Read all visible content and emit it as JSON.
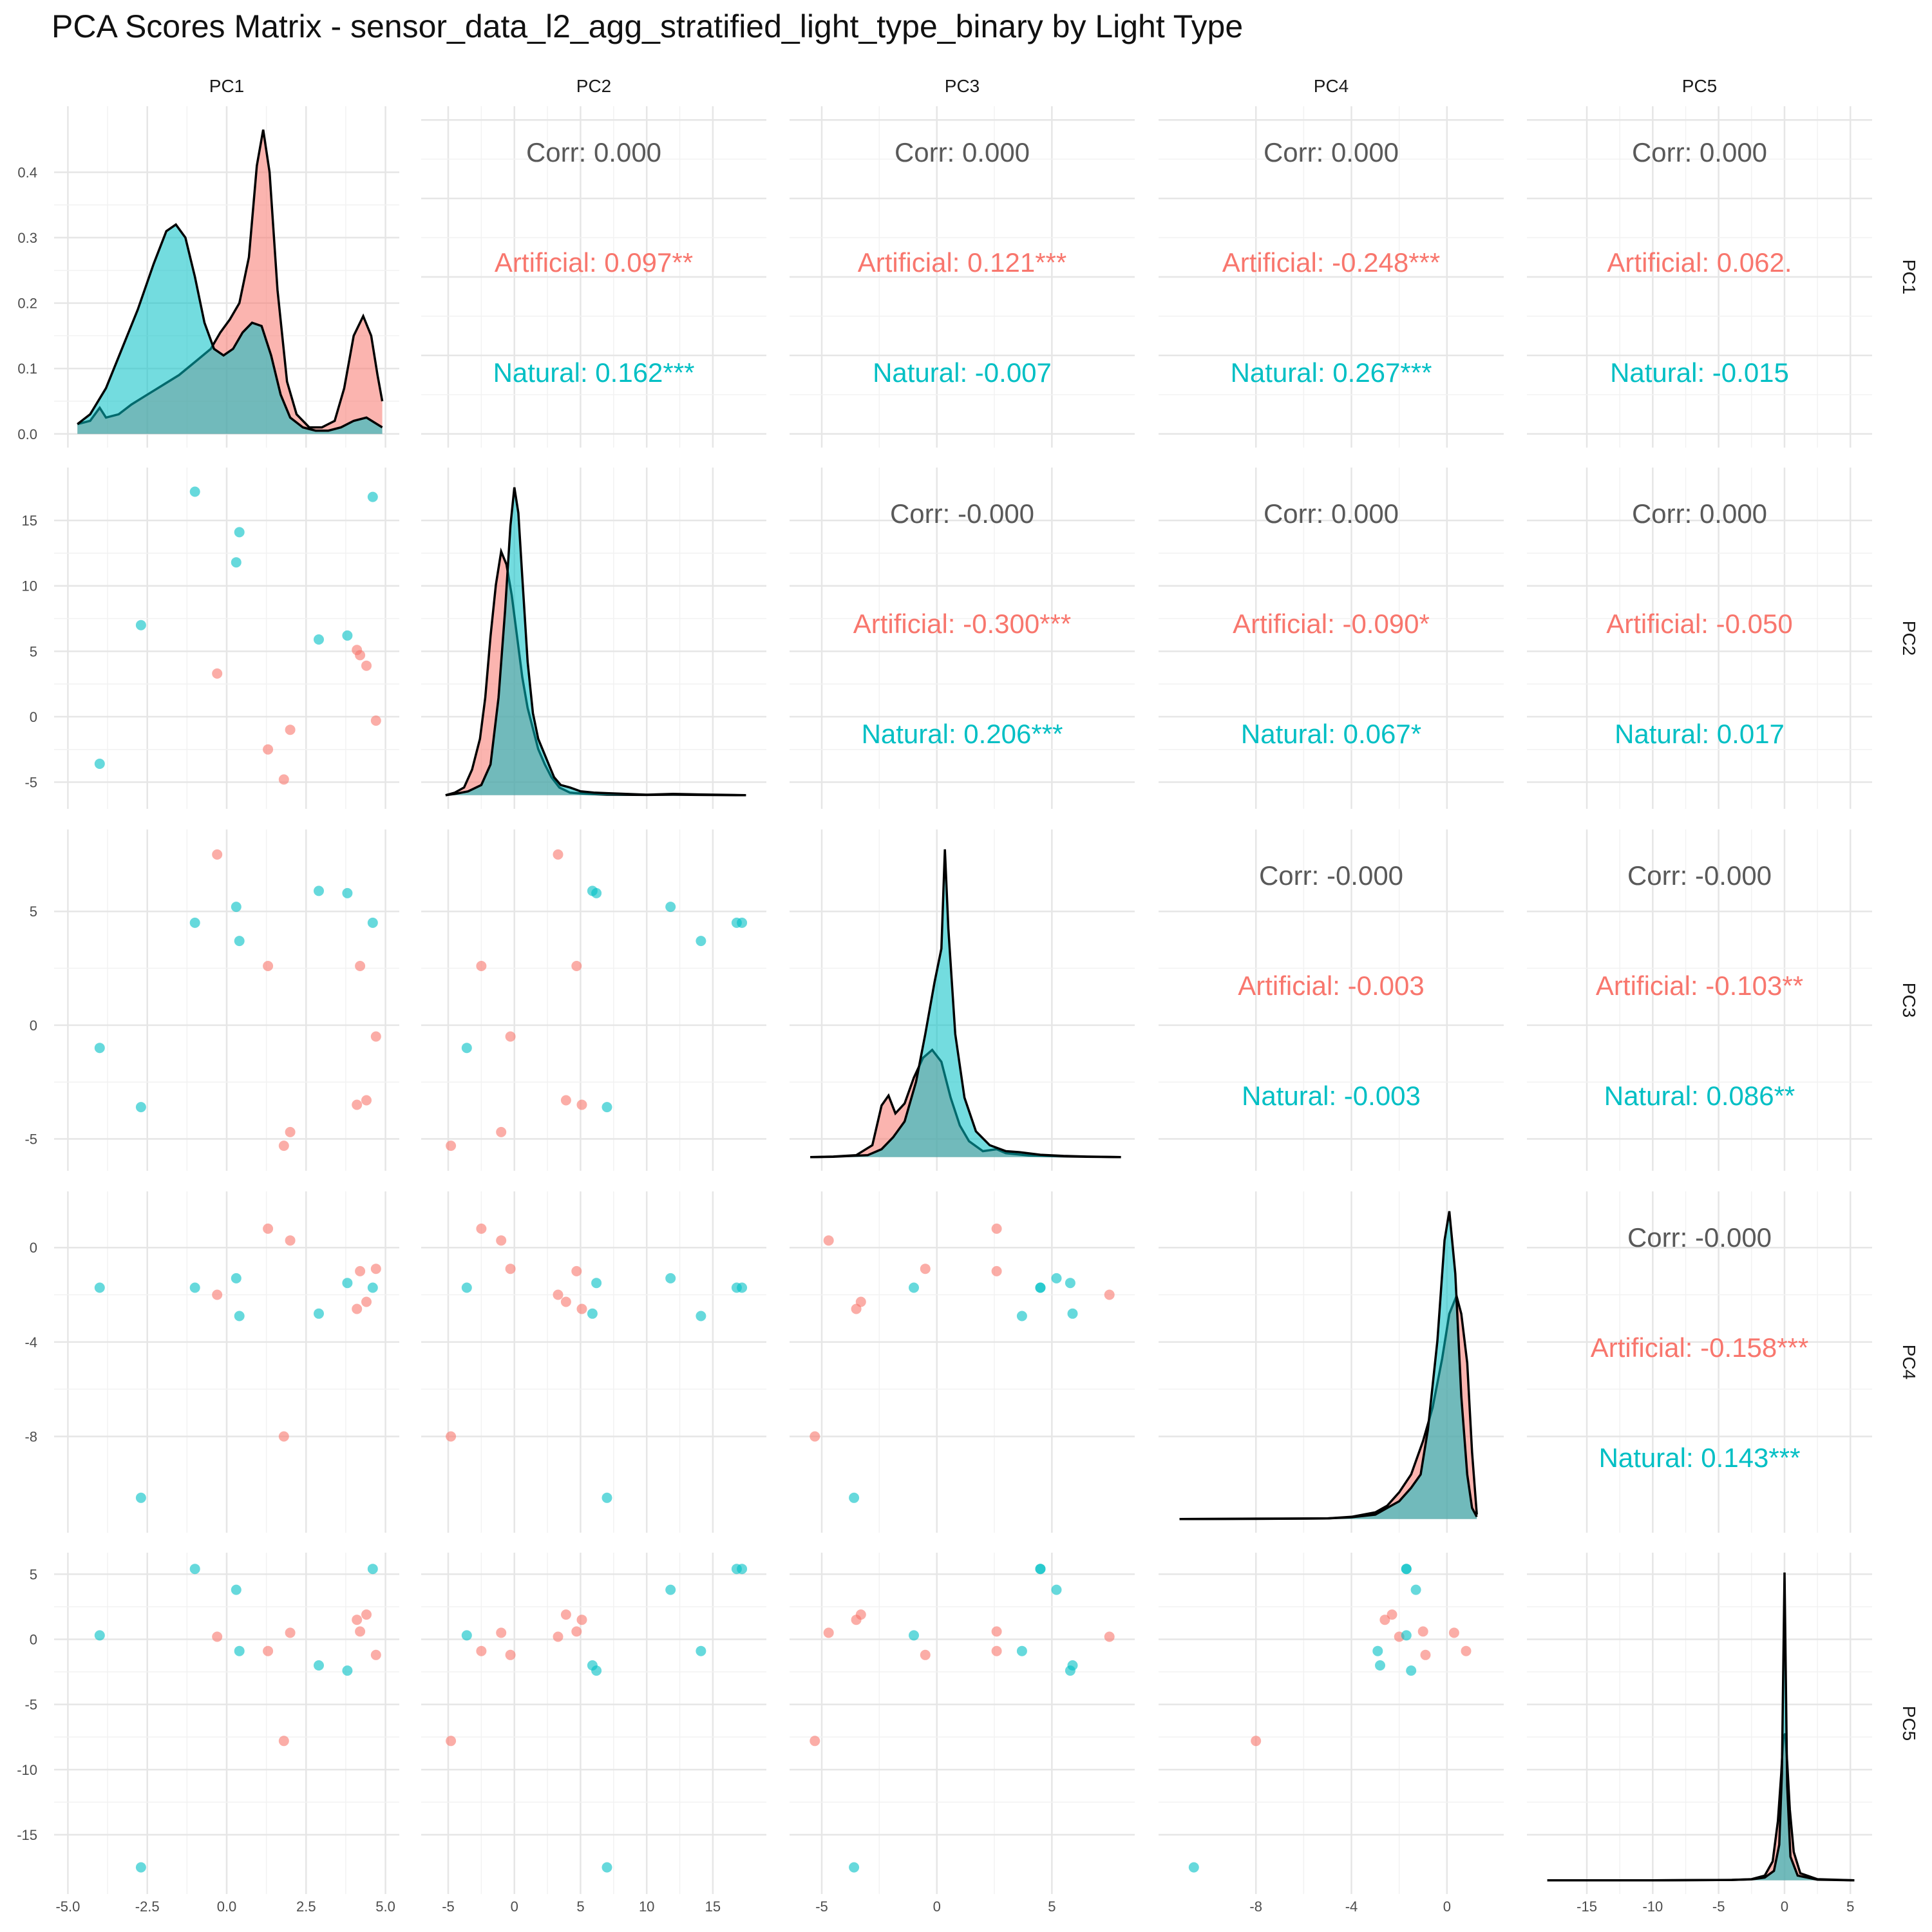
{
  "chart_data": {
    "type": "scatter",
    "title": "PCA Scores Matrix - sensor_data_l2_agg_stratified_light_type_binary by Light Type",
    "variables": [
      "PC1",
      "PC2",
      "PC3",
      "PC4",
      "PC5"
    ],
    "groups": [
      {
        "name": "Artificial",
        "color": "#F8766D"
      },
      {
        "name": "Natural",
        "color": "#00BFC4"
      }
    ],
    "axes": {
      "PC1": {
        "range": [
          -5.0,
          5.0
        ],
        "ticks": [
          "-5.0",
          "-2.5",
          "0.0",
          "2.5",
          "5.0"
        ],
        "tick_values": [
          -5,
          -2.5,
          0,
          2.5,
          5
        ]
      },
      "PC2": {
        "range": [
          -6,
          18
        ],
        "ticks": [
          "-5",
          "0",
          "5",
          "10",
          "15"
        ],
        "tick_values": [
          -5,
          0,
          5,
          10,
          15
        ]
      },
      "PC3": {
        "range": [
          -5.8,
          8.0
        ],
        "ticks": [
          "-5",
          "0",
          "5"
        ],
        "tick_values": [
          -5,
          0,
          5
        ]
      },
      "PC4": {
        "range": [
          -11.5,
          1.8
        ],
        "ticks": [
          "-8",
          "-4",
          "0"
        ],
        "tick_values": [
          -8,
          -4,
          0
        ]
      },
      "PC5": {
        "range": [
          -18.5,
          5.6
        ],
        "ticks": [
          "-15",
          "-10",
          "-5",
          "0",
          "5"
        ],
        "tick_values": [
          -15,
          -10,
          -5,
          0,
          5
        ]
      }
    },
    "density_ylim": [
      0,
      0.48
    ],
    "density_ticks": [
      "0.0",
      "0.1",
      "0.2",
      "0.3",
      "0.4"
    ],
    "density_tick_values": [
      0,
      0.1,
      0.2,
      0.3,
      0.4
    ],
    "correlations": [
      {
        "row": "PC1",
        "col": "PC2",
        "overall": "Corr: 0.000",
        "artificial": "Artificial: 0.097**",
        "natural": "Natural: 0.162***"
      },
      {
        "row": "PC1",
        "col": "PC3",
        "overall": "Corr: 0.000",
        "artificial": "Artificial: 0.121***",
        "natural": "Natural: -0.007"
      },
      {
        "row": "PC1",
        "col": "PC4",
        "overall": "Corr: 0.000",
        "artificial": "Artificial: -0.248***",
        "natural": "Natural: 0.267***"
      },
      {
        "row": "PC1",
        "col": "PC5",
        "overall": "Corr: 0.000",
        "artificial": "Artificial: 0.062.",
        "natural": "Natural: -0.015"
      },
      {
        "row": "PC2",
        "col": "PC3",
        "overall": "Corr: -0.000",
        "artificial": "Artificial: -0.300***",
        "natural": "Natural: 0.206***"
      },
      {
        "row": "PC2",
        "col": "PC4",
        "overall": "Corr: 0.000",
        "artificial": "Artificial: -0.090*",
        "natural": "Natural: 0.067*"
      },
      {
        "row": "PC2",
        "col": "PC5",
        "overall": "Corr: 0.000",
        "artificial": "Artificial: -0.050",
        "natural": "Natural: 0.017"
      },
      {
        "row": "PC3",
        "col": "PC4",
        "overall": "Corr: -0.000",
        "artificial": "Artificial: -0.003",
        "natural": "Natural: -0.003"
      },
      {
        "row": "PC3",
        "col": "PC5",
        "overall": "Corr: -0.000",
        "artificial": "Artificial: -0.103**",
        "natural": "Natural: 0.086**"
      },
      {
        "row": "PC4",
        "col": "PC5",
        "overall": "Corr: -0.000",
        "artificial": "Artificial: -0.158***",
        "natural": "Natural: 0.143***"
      }
    ],
    "densities": {
      "PC1": {
        "Artificial": [
          [
            -4.7,
            0.015
          ],
          [
            -4.3,
            0.02
          ],
          [
            -4.0,
            0.04
          ],
          [
            -3.8,
            0.025
          ],
          [
            -3.4,
            0.03
          ],
          [
            -3.0,
            0.045
          ],
          [
            -2.5,
            0.06
          ],
          [
            -2.0,
            0.075
          ],
          [
            -1.5,
            0.09
          ],
          [
            -1.0,
            0.11
          ],
          [
            -0.5,
            0.13
          ],
          [
            -0.2,
            0.155
          ],
          [
            0.1,
            0.175
          ],
          [
            0.4,
            0.2
          ],
          [
            0.7,
            0.27
          ],
          [
            0.95,
            0.41
          ],
          [
            1.15,
            0.465
          ],
          [
            1.35,
            0.4
          ],
          [
            1.6,
            0.22
          ],
          [
            1.9,
            0.08
          ],
          [
            2.2,
            0.03
          ],
          [
            2.6,
            0.01
          ],
          [
            3.0,
            0.01
          ],
          [
            3.4,
            0.02
          ],
          [
            3.7,
            0.07
          ],
          [
            4.0,
            0.15
          ],
          [
            4.3,
            0.18
          ],
          [
            4.55,
            0.15
          ],
          [
            4.75,
            0.09
          ],
          [
            4.9,
            0.05
          ]
        ],
        "Natural": [
          [
            -4.7,
            0.015
          ],
          [
            -4.3,
            0.03
          ],
          [
            -3.8,
            0.07
          ],
          [
            -3.3,
            0.13
          ],
          [
            -2.8,
            0.19
          ],
          [
            -2.3,
            0.26
          ],
          [
            -1.9,
            0.31
          ],
          [
            -1.6,
            0.32
          ],
          [
            -1.3,
            0.3
          ],
          [
            -1.0,
            0.24
          ],
          [
            -0.7,
            0.17
          ],
          [
            -0.4,
            0.13
          ],
          [
            -0.1,
            0.12
          ],
          [
            0.2,
            0.13
          ],
          [
            0.5,
            0.155
          ],
          [
            0.8,
            0.17
          ],
          [
            1.1,
            0.165
          ],
          [
            1.4,
            0.12
          ],
          [
            1.7,
            0.06
          ],
          [
            2.0,
            0.025
          ],
          [
            2.4,
            0.01
          ],
          [
            2.8,
            0.005
          ],
          [
            3.2,
            0.005
          ],
          [
            3.6,
            0.01
          ],
          [
            4.0,
            0.02
          ],
          [
            4.4,
            0.025
          ],
          [
            4.9,
            0.01
          ]
        ]
      },
      "PC2": {
        "Artificial": [
          [
            -5.2,
            0.0
          ],
          [
            -4.5,
            0.01
          ],
          [
            -3.8,
            0.03
          ],
          [
            -3.2,
            0.1
          ],
          [
            -2.6,
            0.22
          ],
          [
            -2.2,
            0.38
          ],
          [
            -1.8,
            0.62
          ],
          [
            -1.4,
            0.82
          ],
          [
            -1.0,
            0.95
          ],
          [
            -0.6,
            0.9
          ],
          [
            -0.2,
            0.78
          ],
          [
            0.2,
            0.62
          ],
          [
            0.6,
            0.46
          ],
          [
            1.0,
            0.34
          ],
          [
            1.4,
            0.26
          ],
          [
            1.8,
            0.18
          ],
          [
            2.3,
            0.12
          ],
          [
            2.8,
            0.07
          ],
          [
            3.4,
            0.03
          ],
          [
            4.2,
            0.01
          ],
          [
            5.5,
            0.005
          ],
          [
            7.0,
            0.002
          ],
          [
            10,
            0.001
          ],
          [
            12,
            0.002
          ],
          [
            14,
            0.001
          ],
          [
            17.5,
            0.0
          ]
        ],
        "Natural": [
          [
            -5.2,
            0.0
          ],
          [
            -4.5,
            0.005
          ],
          [
            -3.5,
            0.015
          ],
          [
            -2.5,
            0.04
          ],
          [
            -1.8,
            0.12
          ],
          [
            -1.2,
            0.38
          ],
          [
            -0.7,
            0.72
          ],
          [
            -0.3,
            1.05
          ],
          [
            0.0,
            1.2
          ],
          [
            0.3,
            1.1
          ],
          [
            0.6,
            0.85
          ],
          [
            1.0,
            0.52
          ],
          [
            1.4,
            0.32
          ],
          [
            1.8,
            0.22
          ],
          [
            2.2,
            0.17
          ],
          [
            2.6,
            0.12
          ],
          [
            3.0,
            0.07
          ],
          [
            3.5,
            0.04
          ],
          [
            4.2,
            0.03
          ],
          [
            5.0,
            0.015
          ],
          [
            6.0,
            0.01
          ],
          [
            7.0,
            0.008
          ],
          [
            10,
            0.002
          ],
          [
            12,
            0.005
          ],
          [
            14,
            0.003
          ],
          [
            17.5,
            0.0
          ]
        ]
      },
      "PC3": {
        "Artificial": [
          [
            -5.5,
            0.0
          ],
          [
            -4.5,
            0.003
          ],
          [
            -3.5,
            0.01
          ],
          [
            -2.8,
            0.06
          ],
          [
            -2.4,
            0.26
          ],
          [
            -2.1,
            0.31
          ],
          [
            -1.8,
            0.22
          ],
          [
            -1.4,
            0.27
          ],
          [
            -1.0,
            0.4
          ],
          [
            -0.6,
            0.5
          ],
          [
            -0.2,
            0.54
          ],
          [
            0.2,
            0.48
          ],
          [
            0.6,
            0.3
          ],
          [
            1.0,
            0.16
          ],
          [
            1.4,
            0.08
          ],
          [
            2.0,
            0.03
          ],
          [
            2.6,
            0.04
          ],
          [
            3.0,
            0.02
          ],
          [
            4.0,
            0.008
          ],
          [
            5.0,
            0.005
          ],
          [
            6.5,
            0.002
          ],
          [
            8.0,
            0.0
          ]
        ],
        "Natural": [
          [
            -5.5,
            0.0
          ],
          [
            -4.5,
            0.002
          ],
          [
            -3.0,
            0.01
          ],
          [
            -2.4,
            0.04
          ],
          [
            -1.9,
            0.1
          ],
          [
            -1.4,
            0.18
          ],
          [
            -0.9,
            0.38
          ],
          [
            -0.5,
            0.62
          ],
          [
            -0.1,
            0.88
          ],
          [
            0.2,
            1.05
          ],
          [
            0.35,
            1.55
          ],
          [
            0.5,
            1.15
          ],
          [
            0.8,
            0.62
          ],
          [
            1.2,
            0.3
          ],
          [
            1.7,
            0.13
          ],
          [
            2.3,
            0.06
          ],
          [
            3.0,
            0.03
          ],
          [
            3.6,
            0.025
          ],
          [
            4.5,
            0.012
          ],
          [
            5.5,
            0.006
          ],
          [
            6.5,
            0.003
          ],
          [
            8.0,
            0.0
          ]
        ]
      },
      "PC4": {
        "Artificial": [
          [
            -11.2,
            0.0
          ],
          [
            -8,
            0.001
          ],
          [
            -5,
            0.003
          ],
          [
            -4,
            0.01
          ],
          [
            -3.0,
            0.03
          ],
          [
            -2.5,
            0.06
          ],
          [
            -2.0,
            0.12
          ],
          [
            -1.5,
            0.2
          ],
          [
            -1.0,
            0.35
          ],
          [
            -0.6,
            0.5
          ],
          [
            -0.2,
            0.72
          ],
          [
            0.1,
            0.92
          ],
          [
            0.4,
            1.0
          ],
          [
            0.6,
            0.92
          ],
          [
            0.85,
            0.7
          ],
          [
            1.05,
            0.3
          ],
          [
            1.25,
            0.02
          ]
        ],
        "Natural": [
          [
            -11.2,
            0.0
          ],
          [
            -8,
            0.002
          ],
          [
            -5,
            0.003
          ],
          [
            -4,
            0.008
          ],
          [
            -3.0,
            0.02
          ],
          [
            -2.5,
            0.05
          ],
          [
            -2.0,
            0.08
          ],
          [
            -1.5,
            0.14
          ],
          [
            -1.1,
            0.2
          ],
          [
            -0.8,
            0.4
          ],
          [
            -0.4,
            0.8
          ],
          [
            -0.1,
            1.25
          ],
          [
            0.1,
            1.38
          ],
          [
            0.35,
            1.1
          ],
          [
            0.6,
            0.55
          ],
          [
            0.85,
            0.2
          ],
          [
            1.05,
            0.05
          ],
          [
            1.25,
            0.01
          ]
        ]
      },
      "PC5": {
        "Artificial": [
          [
            -18,
            0.0
          ],
          [
            -10,
            0.0
          ],
          [
            -4,
            0.002
          ],
          [
            -2.5,
            0.005
          ],
          [
            -1.5,
            0.02
          ],
          [
            -0.9,
            0.08
          ],
          [
            -0.5,
            0.25
          ],
          [
            -0.25,
            0.45
          ],
          [
            -0.1,
            0.6
          ],
          [
            0.05,
            0.62
          ],
          [
            0.2,
            0.5
          ],
          [
            0.4,
            0.3
          ],
          [
            0.7,
            0.12
          ],
          [
            1.2,
            0.03
          ],
          [
            2.5,
            0.005
          ],
          [
            5.3,
            0.0
          ]
        ],
        "Natural": [
          [
            -18,
            0.0
          ],
          [
            -10,
            0.0
          ],
          [
            -4,
            0.002
          ],
          [
            -2.5,
            0.004
          ],
          [
            -1.5,
            0.012
          ],
          [
            -0.8,
            0.04
          ],
          [
            -0.4,
            0.15
          ],
          [
            -0.2,
            0.45
          ],
          [
            -0.08,
            0.95
          ],
          [
            0.0,
            1.3
          ],
          [
            0.08,
            0.95
          ],
          [
            0.2,
            0.4
          ],
          [
            0.45,
            0.1
          ],
          [
            1.0,
            0.02
          ],
          [
            2.5,
            0.003
          ],
          [
            5.3,
            0.0
          ]
        ]
      }
    },
    "scatter": {
      "PC1": [
        -1.0,
        0.3,
        0.4,
        -0.3,
        1.3,
        1.8,
        4.6,
        4.1,
        4.4,
        2.0,
        3.8,
        -2.7,
        -4.0,
        4.2,
        2.9,
        4.7
      ],
      "PC2": [
        17.2,
        11.8,
        14.1,
        3.3,
        -2.5,
        -4.8,
        16.8,
        5.1,
        3.9,
        -1.0,
        6.2,
        7.0,
        -3.6,
        4.7,
        5.9,
        -0.3
      ],
      "PC3": [
        4.5,
        5.2,
        3.7,
        7.5,
        2.6,
        -5.3,
        4.5,
        -3.5,
        -3.3,
        -4.7,
        5.8,
        -3.6,
        -1.0,
        2.6,
        5.9,
        -0.5
      ],
      "PC4": [
        -1.7,
        -1.3,
        -2.9,
        -2.0,
        0.8,
        -8.0,
        -1.7,
        -2.6,
        -2.3,
        0.3,
        -1.5,
        -10.6,
        -1.7,
        -1.0,
        -2.8,
        -0.9
      ],
      "PC5": [
        5.4,
        3.8,
        -0.9,
        0.2,
        -0.9,
        -7.8,
        5.4,
        1.5,
        1.9,
        0.5,
        -2.4,
        -17.5,
        0.3,
        0.6,
        -2.0,
        -1.2
      ],
      "group": [
        "Natural",
        "Natural",
        "Natural",
        "Artificial",
        "Artificial",
        "Artificial",
        "Natural",
        "Artificial",
        "Artificial",
        "Artificial",
        "Natural",
        "Natural",
        "Natural",
        "Artificial",
        "Natural",
        "Artificial"
      ]
    }
  }
}
